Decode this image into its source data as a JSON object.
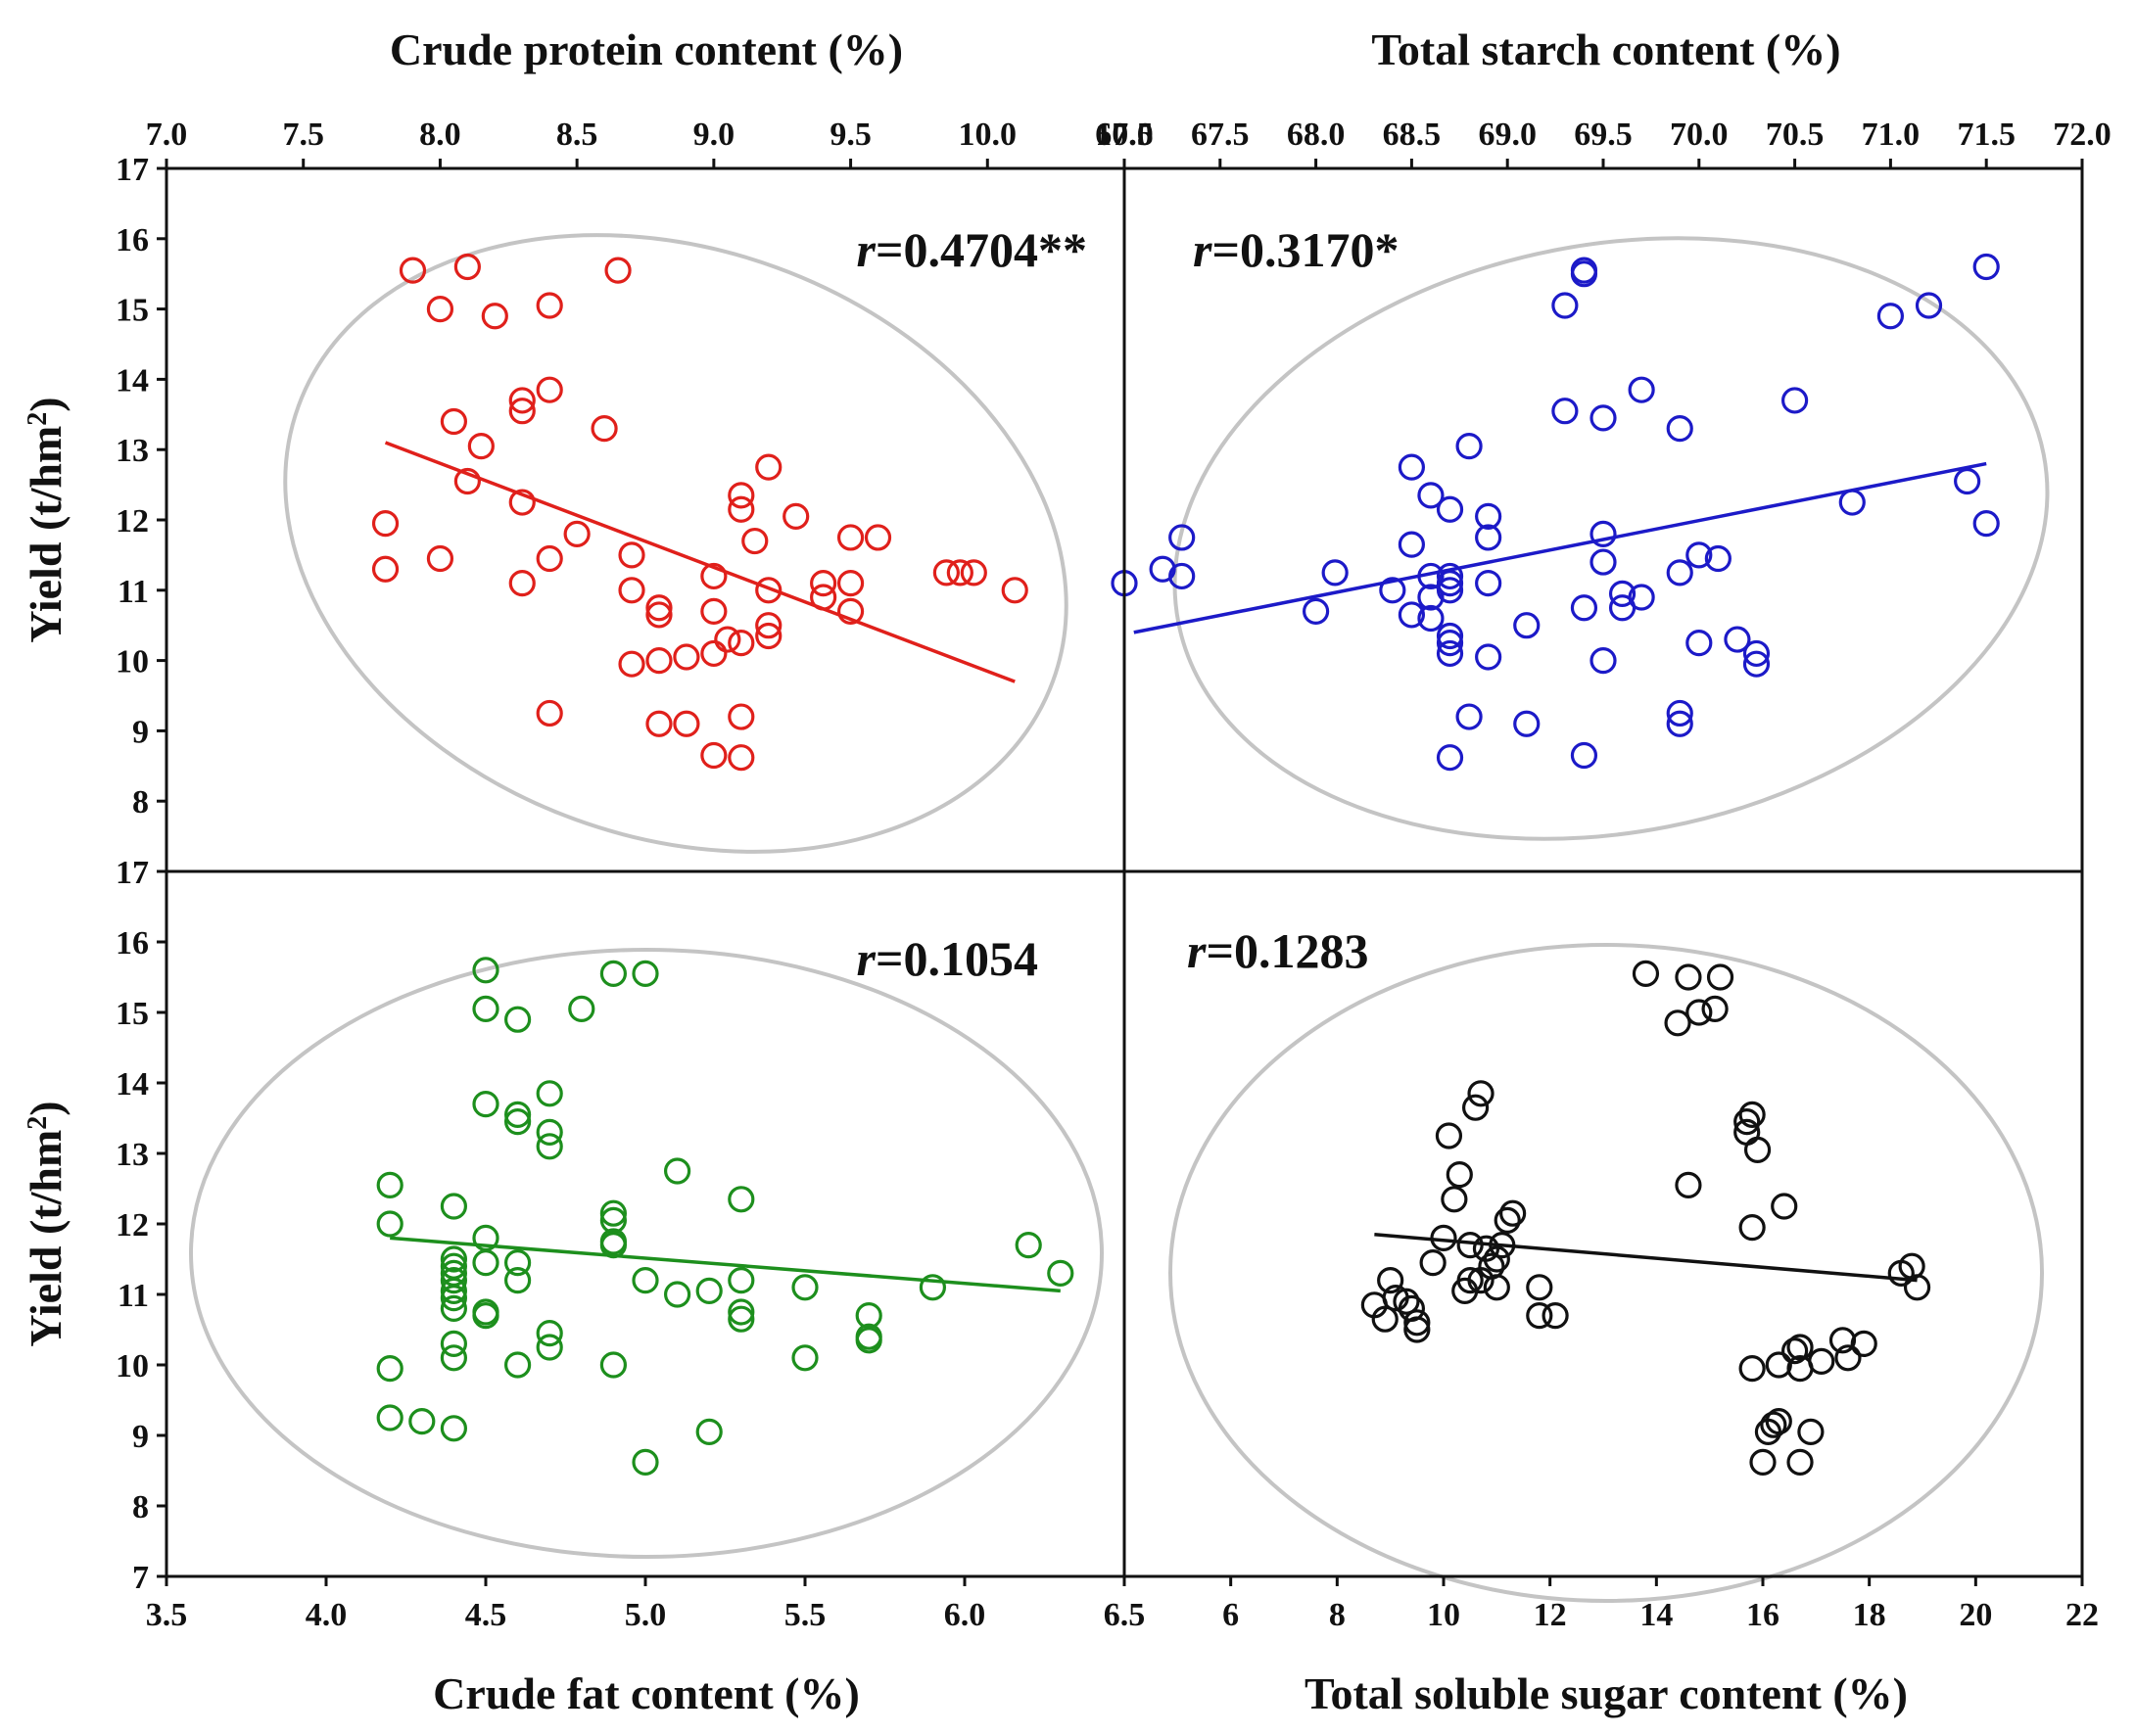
{
  "chart_data": [
    {
      "id": "protein",
      "type": "scatter",
      "panel": "top-left",
      "xlabel": "Crude protein content (%)",
      "ylabel": "Yield (t/hm2)",
      "xlim": [
        7.0,
        10.5
      ],
      "ylim": [
        7,
        17
      ],
      "xticks": [
        "7.0",
        "7.5",
        "8.0",
        "8.5",
        "9.0",
        "9.5",
        "10.0",
        "10.5"
      ],
      "yticks": [
        "8",
        "9",
        "10",
        "11",
        "12",
        "13",
        "14",
        "15",
        "16",
        "17"
      ],
      "color": "#e0201b",
      "r_label": "r",
      "r_value": "=0.4704**",
      "fit": [
        [
          7.8,
          13.1
        ],
        [
          10.1,
          9.7
        ]
      ],
      "points": [
        [
          7.9,
          15.55
        ],
        [
          8.1,
          15.6
        ],
        [
          8.65,
          15.55
        ],
        [
          8.0,
          15.0
        ],
        [
          8.4,
          15.05
        ],
        [
          8.2,
          14.9
        ],
        [
          8.4,
          13.85
        ],
        [
          8.3,
          13.7
        ],
        [
          8.3,
          13.55
        ],
        [
          8.05,
          13.4
        ],
        [
          8.6,
          13.3
        ],
        [
          8.15,
          13.05
        ],
        [
          8.1,
          12.55
        ],
        [
          8.3,
          12.25
        ],
        [
          9.2,
          12.75
        ],
        [
          9.1,
          12.35
        ],
        [
          9.1,
          12.15
        ],
        [
          9.3,
          12.05
        ],
        [
          7.8,
          11.95
        ],
        [
          8.5,
          11.8
        ],
        [
          9.15,
          11.7
        ],
        [
          9.5,
          11.75
        ],
        [
          9.6,
          11.75
        ],
        [
          8.7,
          11.5
        ],
        [
          8.4,
          11.45
        ],
        [
          8.0,
          11.45
        ],
        [
          9.9,
          11.25
        ],
        [
          9.85,
          11.25
        ],
        [
          9.95,
          11.25
        ],
        [
          7.8,
          11.3
        ],
        [
          9.0,
          11.2
        ],
        [
          8.3,
          11.1
        ],
        [
          9.4,
          11.1
        ],
        [
          9.5,
          11.1
        ],
        [
          8.7,
          11.0
        ],
        [
          9.2,
          11.0
        ],
        [
          9.4,
          10.9
        ],
        [
          10.1,
          11.0
        ],
        [
          8.8,
          10.75
        ],
        [
          9.0,
          10.7
        ],
        [
          9.5,
          10.7
        ],
        [
          8.8,
          10.65
        ],
        [
          9.2,
          10.5
        ],
        [
          9.2,
          10.35
        ],
        [
          9.05,
          10.3
        ],
        [
          9.1,
          10.25
        ],
        [
          9.0,
          10.1
        ],
        [
          8.9,
          10.05
        ],
        [
          8.8,
          10.0
        ],
        [
          8.7,
          9.95
        ],
        [
          8.4,
          9.25
        ],
        [
          8.8,
          9.1
        ],
        [
          8.9,
          9.1
        ],
        [
          9.1,
          9.2
        ],
        [
          9.0,
          8.65
        ],
        [
          9.1,
          8.62
        ]
      ]
    },
    {
      "id": "starch",
      "type": "scatter",
      "panel": "top-right",
      "xlabel": "Total starch content (%)",
      "ylabel": "Yield (t/hm2)",
      "xlim": [
        67.0,
        72.0
      ],
      "ylim": [
        7,
        17
      ],
      "xticks": [
        "67.0",
        "67.5",
        "68.0",
        "68.5",
        "69.0",
        "69.5",
        "70.0",
        "70.5",
        "71.0",
        "71.5",
        "72.0"
      ],
      "color": "#1c1ac8",
      "r_label": "r",
      "r_value": "=0.3170*",
      "fit": [
        [
          67.05,
          10.4
        ],
        [
          71.5,
          12.8
        ]
      ],
      "points": [
        [
          69.4,
          15.55
        ],
        [
          69.4,
          15.5
        ],
        [
          71.5,
          15.6
        ],
        [
          69.3,
          15.05
        ],
        [
          71.2,
          15.05
        ],
        [
          71.0,
          14.9
        ],
        [
          69.7,
          13.85
        ],
        [
          70.5,
          13.7
        ],
        [
          69.3,
          13.55
        ],
        [
          69.5,
          13.45
        ],
        [
          69.9,
          13.3
        ],
        [
          68.8,
          13.05
        ],
        [
          68.5,
          12.75
        ],
        [
          68.6,
          12.35
        ],
        [
          68.7,
          12.15
        ],
        [
          68.9,
          12.05
        ],
        [
          71.4,
          12.55
        ],
        [
          70.8,
          12.25
        ],
        [
          71.5,
          11.95
        ],
        [
          68.9,
          11.75
        ],
        [
          69.5,
          11.8
        ],
        [
          68.5,
          11.65
        ],
        [
          67.3,
          11.75
        ],
        [
          67.3,
          11.2
        ],
        [
          67.2,
          11.3
        ],
        [
          68.1,
          11.25
        ],
        [
          68.6,
          11.2
        ],
        [
          68.7,
          11.2
        ],
        [
          68.7,
          11.1
        ],
        [
          69.5,
          11.4
        ],
        [
          70.0,
          11.5
        ],
        [
          70.1,
          11.45
        ],
        [
          69.9,
          11.25
        ],
        [
          67.0,
          11.1
        ],
        [
          68.4,
          11.0
        ],
        [
          68.6,
          10.9
        ],
        [
          68.7,
          11.0
        ],
        [
          68.9,
          11.1
        ],
        [
          69.6,
          10.95
        ],
        [
          69.7,
          10.9
        ],
        [
          69.6,
          10.75
        ],
        [
          69.4,
          10.75
        ],
        [
          68.0,
          10.7
        ],
        [
          68.6,
          10.6
        ],
        [
          68.5,
          10.65
        ],
        [
          69.1,
          10.5
        ],
        [
          68.7,
          10.35
        ],
        [
          68.7,
          10.25
        ],
        [
          70.0,
          10.25
        ],
        [
          70.2,
          10.3
        ],
        [
          70.3,
          10.1
        ],
        [
          70.3,
          9.95
        ],
        [
          68.7,
          10.1
        ],
        [
          68.9,
          10.05
        ],
        [
          69.5,
          10.0
        ],
        [
          68.8,
          9.2
        ],
        [
          69.1,
          9.1
        ],
        [
          69.9,
          9.25
        ],
        [
          69.9,
          9.1
        ],
        [
          68.7,
          8.62
        ],
        [
          69.4,
          8.65
        ]
      ]
    },
    {
      "id": "fat",
      "type": "scatter",
      "panel": "bottom-left",
      "xlabel": "Crude fat content (%)",
      "ylabel": "Yield  (t/hm2)",
      "xlim": [
        3.5,
        6.5
      ],
      "ylim": [
        7,
        17
      ],
      "xticks": [
        "3.5",
        "4.0",
        "4.5",
        "5.0",
        "5.5",
        "6.0",
        "6.5"
      ],
      "yticks": [
        "7",
        "8",
        "9",
        "10",
        "11",
        "12",
        "13",
        "14",
        "15",
        "16",
        "17"
      ],
      "color": "#1d8f1d",
      "r_label": "r",
      "r_value": "=0.1054",
      "fit": [
        [
          4.2,
          11.8
        ],
        [
          6.3,
          11.05
        ]
      ],
      "points": [
        [
          4.5,
          15.6
        ],
        [
          4.9,
          15.55
        ],
        [
          5.0,
          15.55
        ],
        [
          4.5,
          15.05
        ],
        [
          4.8,
          15.05
        ],
        [
          4.6,
          14.9
        ],
        [
          4.7,
          13.85
        ],
        [
          4.5,
          13.7
        ],
        [
          4.6,
          13.55
        ],
        [
          4.6,
          13.45
        ],
        [
          4.7,
          13.3
        ],
        [
          4.7,
          13.1
        ],
        [
          5.1,
          12.75
        ],
        [
          4.2,
          12.55
        ],
        [
          5.3,
          12.35
        ],
        [
          4.4,
          12.25
        ],
        [
          4.9,
          12.15
        ],
        [
          4.9,
          12.05
        ],
        [
          4.2,
          12.0
        ],
        [
          4.5,
          11.8
        ],
        [
          4.9,
          11.75
        ],
        [
          4.9,
          11.7
        ],
        [
          6.2,
          11.7
        ],
        [
          4.4,
          11.5
        ],
        [
          4.4,
          11.4
        ],
        [
          4.5,
          11.45
        ],
        [
          4.6,
          11.45
        ],
        [
          4.4,
          11.3
        ],
        [
          4.4,
          11.2
        ],
        [
          4.6,
          11.2
        ],
        [
          5.0,
          11.2
        ],
        [
          5.3,
          11.2
        ],
        [
          6.3,
          11.3
        ],
        [
          5.5,
          11.1
        ],
        [
          5.9,
          11.1
        ],
        [
          4.4,
          11.05
        ],
        [
          5.2,
          11.05
        ],
        [
          5.1,
          11.0
        ],
        [
          4.4,
          10.95
        ],
        [
          4.4,
          10.8
        ],
        [
          4.5,
          10.75
        ],
        [
          4.5,
          10.7
        ],
        [
          5.3,
          10.75
        ],
        [
          5.3,
          10.65
        ],
        [
          5.7,
          10.7
        ],
        [
          4.7,
          10.45
        ],
        [
          5.7,
          10.4
        ],
        [
          5.7,
          10.35
        ],
        [
          4.4,
          10.3
        ],
        [
          4.7,
          10.25
        ],
        [
          4.4,
          10.1
        ],
        [
          5.5,
          10.1
        ],
        [
          4.6,
          10.0
        ],
        [
          4.9,
          10.0
        ],
        [
          4.2,
          9.95
        ],
        [
          4.2,
          9.25
        ],
        [
          4.3,
          9.2
        ],
        [
          4.4,
          9.1
        ],
        [
          5.2,
          9.05
        ],
        [
          5.0,
          8.62
        ]
      ]
    },
    {
      "id": "sugar",
      "type": "scatter",
      "panel": "bottom-right",
      "xlabel": "Total soluble sugar content (%)",
      "ylabel": "Yield  (t/hm2)",
      "xlim": [
        4,
        22
      ],
      "ylim": [
        7,
        17
      ],
      "xticks": [
        "6",
        "8",
        "10",
        "12",
        "14",
        "16",
        "18",
        "20",
        "22"
      ],
      "color": "#111111",
      "r_label": "r",
      "r_value": "=0.1283",
      "fit": [
        [
          8.7,
          11.85
        ],
        [
          18.9,
          11.2
        ]
      ],
      "points": [
        [
          13.8,
          15.55
        ],
        [
          14.6,
          15.5
        ],
        [
          15.2,
          15.5
        ],
        [
          14.8,
          15.0
        ],
        [
          15.1,
          15.05
        ],
        [
          14.4,
          14.85
        ],
        [
          10.7,
          13.85
        ],
        [
          10.6,
          13.65
        ],
        [
          15.8,
          13.55
        ],
        [
          15.7,
          13.45
        ],
        [
          15.7,
          13.3
        ],
        [
          10.1,
          13.25
        ],
        [
          15.9,
          13.05
        ],
        [
          10.3,
          12.7
        ],
        [
          14.6,
          12.55
        ],
        [
          10.2,
          12.35
        ],
        [
          16.4,
          12.25
        ],
        [
          11.3,
          12.15
        ],
        [
          11.2,
          12.05
        ],
        [
          15.8,
          11.95
        ],
        [
          10.0,
          11.8
        ],
        [
          10.5,
          11.7
        ],
        [
          10.8,
          11.65
        ],
        [
          11.1,
          11.7
        ],
        [
          11.0,
          11.5
        ],
        [
          9.8,
          11.45
        ],
        [
          10.9,
          11.4
        ],
        [
          18.8,
          11.4
        ],
        [
          18.6,
          11.3
        ],
        [
          9.0,
          11.2
        ],
        [
          10.5,
          11.2
        ],
        [
          10.7,
          11.2
        ],
        [
          10.4,
          11.05
        ],
        [
          11.0,
          11.1
        ],
        [
          11.8,
          11.1
        ],
        [
          18.9,
          11.1
        ],
        [
          8.7,
          10.85
        ],
        [
          9.1,
          10.95
        ],
        [
          9.3,
          10.9
        ],
        [
          9.4,
          10.8
        ],
        [
          8.9,
          10.65
        ],
        [
          11.8,
          10.7
        ],
        [
          12.1,
          10.7
        ],
        [
          9.5,
          10.6
        ],
        [
          9.5,
          10.5
        ],
        [
          16.7,
          10.25
        ],
        [
          16.6,
          10.2
        ],
        [
          17.5,
          10.35
        ],
        [
          17.9,
          10.3
        ],
        [
          17.6,
          10.1
        ],
        [
          17.1,
          10.05
        ],
        [
          16.3,
          10.0
        ],
        [
          16.7,
          9.95
        ],
        [
          15.8,
          9.95
        ],
        [
          16.3,
          9.2
        ],
        [
          16.2,
          9.15
        ],
        [
          16.1,
          9.05
        ],
        [
          16.9,
          9.05
        ],
        [
          16.0,
          8.62
        ],
        [
          16.7,
          8.62
        ]
      ]
    }
  ]
}
